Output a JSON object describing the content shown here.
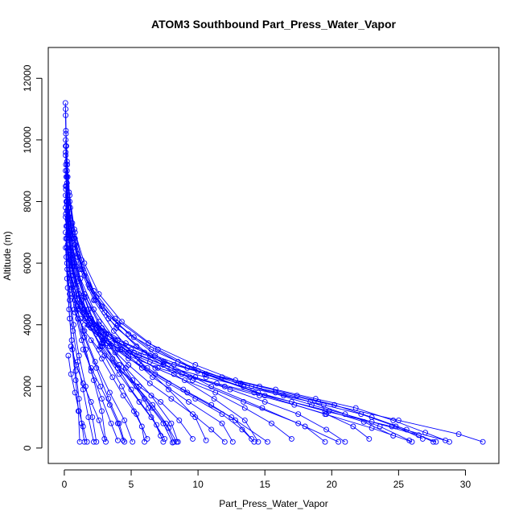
{
  "chart_data": {
    "type": "line",
    "title": "ATOM3 Southbound Part_Press_Water_Vapor",
    "xlabel": "Part_Press_Water_Vapor",
    "ylabel": "Altitude (m)",
    "xlim": [
      -1.2,
      32.5
    ],
    "ylim": [
      -500,
      13000
    ],
    "x_ticks": [
      0,
      5,
      10,
      15,
      20,
      25,
      30
    ],
    "y_ticks": [
      0,
      2000,
      4000,
      6000,
      8000,
      10000,
      12000
    ],
    "x_tick_labels": [
      "0",
      "5",
      "10",
      "15",
      "20",
      "25",
      "30"
    ],
    "y_tick_labels": [
      "0",
      "2000",
      "4000",
      "6000",
      "8000",
      "10000",
      "12000"
    ],
    "color": "#0000ff",
    "marker": "open-circle",
    "grid": false,
    "series": [
      {
        "x": [
          0.1,
          0.12,
          0.2,
          0.35,
          0.6,
          1.0,
          1.8,
          3.0,
          5.2,
          8.5,
          13.0,
          19.0,
          25.0,
          29.5,
          31.3
        ],
        "y": [
          11000,
          10200,
          9300,
          8300,
          7300,
          6300,
          5300,
          4400,
          3600,
          2800,
          2100,
          1500,
          900,
          450,
          200
        ]
      },
      {
        "x": [
          0.1,
          0.15,
          0.25,
          0.45,
          0.8,
          1.4,
          2.4,
          4.0,
          6.5,
          10.0,
          14.5,
          19.5,
          24.5,
          28.5
        ],
        "y": [
          10800,
          9800,
          8800,
          7800,
          6800,
          5800,
          4900,
          4000,
          3200,
          2500,
          1800,
          1200,
          700,
          250
        ]
      },
      {
        "x": [
          0.08,
          0.12,
          0.22,
          0.4,
          0.75,
          1.3,
          2.2,
          3.8,
          6.3,
          9.8,
          14.0,
          18.5,
          23.0,
          26.5,
          27.8
        ],
        "y": [
          11200,
          10300,
          9200,
          8200,
          7100,
          6100,
          5100,
          4200,
          3400,
          2700,
          2000,
          1400,
          850,
          420,
          200
        ]
      },
      {
        "x": [
          0.1,
          0.2,
          0.4,
          0.8,
          1.5,
          2.6,
          4.3,
          7.0,
          10.5,
          15.0,
          19.5,
          23.0,
          26.0
        ],
        "y": [
          10000,
          9000,
          8000,
          7000,
          6000,
          5000,
          4100,
          3200,
          2400,
          1700,
          1100,
          650,
          200
        ]
      },
      {
        "x": [
          0.1,
          0.18,
          0.35,
          0.7,
          1.3,
          2.3,
          3.9,
          6.4,
          9.6,
          13.4,
          17.5,
          20.5
        ],
        "y": [
          9800,
          8800,
          7800,
          6800,
          5800,
          4800,
          3900,
          3000,
          2200,
          1500,
          800,
          200
        ]
      },
      {
        "x": [
          0.1,
          0.2,
          0.4,
          0.8,
          1.5,
          2.8,
          4.8,
          7.5,
          11.0,
          14.8,
          18.0,
          19.5
        ],
        "y": [
          9600,
          8600,
          7600,
          6600,
          5600,
          4600,
          3700,
          2800,
          2000,
          1300,
          700,
          200
        ]
      },
      {
        "x": [
          0.1,
          0.18,
          0.35,
          0.65,
          1.2,
          2.2,
          3.8,
          6.2,
          9.2,
          12.5,
          15.2
        ],
        "y": [
          9500,
          8500,
          7500,
          6500,
          5500,
          4500,
          3500,
          2600,
          1800,
          1000,
          200
        ]
      },
      {
        "x": [
          0.12,
          0.25,
          0.5,
          1.0,
          1.9,
          3.3,
          5.4,
          8.2,
          11.2,
          13.5,
          14.5
        ],
        "y": [
          9200,
          8200,
          7200,
          6200,
          5200,
          4200,
          3300,
          2400,
          1600,
          900,
          200
        ]
      },
      {
        "x": [
          0.1,
          0.2,
          0.4,
          0.8,
          1.5,
          2.6,
          4.3,
          6.6,
          9.3,
          11.8,
          12.6
        ],
        "y": [
          9000,
          8000,
          7000,
          6000,
          5000,
          4100,
          3200,
          2300,
          1500,
          800,
          200
        ]
      },
      {
        "x": [
          0.15,
          0.3,
          0.6,
          1.2,
          2.2,
          3.7,
          5.6,
          7.8,
          9.8,
          10.6
        ],
        "y": [
          8800,
          7800,
          6800,
          5800,
          4800,
          3800,
          2800,
          1900,
          1000,
          250
        ]
      },
      {
        "x": [
          0.1,
          0.25,
          0.5,
          1.0,
          1.8,
          3.0,
          4.6,
          6.5,
          8.0,
          8.5
        ],
        "y": [
          8500,
          7500,
          6500,
          5500,
          4500,
          3500,
          2600,
          1700,
          800,
          200
        ]
      },
      {
        "x": [
          0.12,
          0.25,
          0.5,
          0.95,
          1.7,
          2.8,
          4.3,
          6.0,
          7.4,
          8.1
        ],
        "y": [
          8400,
          7400,
          6400,
          5400,
          4400,
          3400,
          2500,
          1600,
          800,
          180
        ]
      },
      {
        "x": [
          0.1,
          0.22,
          0.45,
          0.9,
          1.6,
          2.7,
          4.1,
          5.6,
          6.9,
          7.4
        ],
        "y": [
          8200,
          7200,
          6200,
          5200,
          4200,
          3300,
          2400,
          1500,
          750,
          200
        ]
      },
      {
        "x": [
          0.15,
          0.3,
          0.6,
          1.1,
          1.9,
          3.0,
          4.3,
          5.4,
          6.2
        ],
        "y": [
          8000,
          7000,
          6000,
          5000,
          4000,
          3000,
          2000,
          1100,
          300
        ]
      },
      {
        "x": [
          0.1,
          0.2,
          0.4,
          0.8,
          1.4,
          2.3,
          3.4,
          4.5,
          5.1
        ],
        "y": [
          7800,
          6800,
          5800,
          4800,
          3800,
          2800,
          1800,
          900,
          200
        ]
      },
      {
        "x": [
          0.12,
          0.25,
          0.5,
          0.9,
          1.5,
          2.4,
          3.3,
          4.1,
          4.5
        ],
        "y": [
          7600,
          6600,
          5600,
          4600,
          3600,
          2600,
          1600,
          800,
          200
        ]
      },
      {
        "x": [
          0.1,
          0.2,
          0.4,
          0.75,
          1.3,
          2.0,
          2.8,
          3.5,
          4.0
        ],
        "y": [
          7500,
          6500,
          5500,
          4500,
          3500,
          2500,
          1600,
          800,
          250
        ]
      },
      {
        "x": [
          0.15,
          0.3,
          0.55,
          1.0,
          1.6,
          2.2,
          2.8,
          3.1
        ],
        "y": [
          7200,
          6200,
          5200,
          4200,
          3200,
          2200,
          1200,
          200
        ]
      },
      {
        "x": [
          0.1,
          0.2,
          0.4,
          0.7,
          1.1,
          1.6,
          2.1,
          2.4
        ],
        "y": [
          7000,
          6000,
          5000,
          4000,
          3000,
          2000,
          1000,
          200
        ]
      },
      {
        "x": [
          0.12,
          0.22,
          0.4,
          0.65,
          1.0,
          1.4,
          1.8,
          2.2
        ],
        "y": [
          6800,
          5800,
          4800,
          3800,
          2800,
          1900,
          1000,
          200
        ]
      },
      {
        "x": [
          0.1,
          0.2,
          0.35,
          0.55,
          0.85,
          1.1,
          1.3,
          1.5
        ],
        "y": [
          6500,
          5500,
          4500,
          3500,
          2500,
          1600,
          800,
          200
        ]
      },
      {
        "x": [
          0.15,
          0.25,
          0.4,
          0.6,
          0.85,
          1.05,
          1.15
        ],
        "y": [
          6200,
          5200,
          4200,
          3200,
          2200,
          1200,
          200
        ]
      },
      {
        "x": [
          0.2,
          0.4,
          0.8,
          1.5,
          2.4,
          3.6,
          5.0,
          6.5,
          7.5
        ],
        "y": [
          7700,
          6800,
          5900,
          4900,
          3900,
          2900,
          1900,
          1000,
          300
        ]
      },
      {
        "x": [
          0.2,
          0.45,
          0.9,
          1.6,
          2.6,
          3.8,
          5.1,
          6.3,
          7.2
        ],
        "y": [
          7900,
          6900,
          5900,
          4900,
          4000,
          3100,
          2200,
          1300,
          400
        ]
      },
      {
        "x": [
          0.3,
          0.6,
          1.1,
          1.9,
          2.9,
          4.1,
          5.4,
          6.6,
          7.8,
          8.4
        ],
        "y": [
          6900,
          5900,
          5000,
          4200,
          3400,
          2700,
          2000,
          1300,
          650,
          200
        ]
      },
      {
        "x": [
          0.3,
          0.7,
          1.3,
          2.2,
          3.4,
          4.8,
          6.4,
          8.0,
          9.6,
          11.0,
          12.0
        ],
        "y": [
          6400,
          5600,
          4800,
          4000,
          3300,
          2700,
          2100,
          1600,
          1100,
          600,
          200
        ]
      },
      {
        "x": [
          0.4,
          0.8,
          1.5,
          2.6,
          4.0,
          5.8,
          7.8,
          9.8,
          11.8,
          13.3,
          14.2
        ],
        "y": [
          6100,
          5300,
          4500,
          3800,
          3200,
          2600,
          2100,
          1600,
          1100,
          600,
          200
        ]
      },
      {
        "x": [
          0.4,
          0.9,
          1.8,
          3.1,
          4.8,
          6.8,
          9.0,
          11.3,
          13.5,
          15.5,
          17.0
        ],
        "y": [
          5800,
          5000,
          4300,
          3700,
          3100,
          2600,
          2200,
          1800,
          1300,
          800,
          300
        ]
      },
      {
        "x": [
          0.5,
          1.0,
          2.0,
          3.4,
          5.2,
          7.4,
          9.8,
          12.4,
          15.0,
          17.5,
          19.6,
          21.0
        ],
        "y": [
          5600,
          4800,
          4200,
          3600,
          3100,
          2700,
          2300,
          1900,
          1500,
          1100,
          600,
          200
        ]
      },
      {
        "x": [
          0.5,
          1.2,
          2.4,
          4.0,
          6.0,
          8.2,
          10.6,
          13.2,
          15.8,
          18.4,
          21.0,
          23.6,
          25.8
        ],
        "y": [
          5300,
          4600,
          4000,
          3500,
          3100,
          2700,
          2400,
          2100,
          1800,
          1500,
          1100,
          700,
          250
        ]
      },
      {
        "x": [
          0.6,
          1.4,
          2.8,
          4.6,
          6.8,
          9.2,
          11.8,
          14.6,
          17.4,
          20.2,
          23.0,
          25.6,
          27.6
        ],
        "y": [
          5000,
          4400,
          3900,
          3400,
          3000,
          2600,
          2300,
          2000,
          1700,
          1400,
          1000,
          600,
          200
        ]
      },
      {
        "x": [
          0.8,
          1.6,
          3.0,
          5.0,
          7.4,
          10.0,
          12.8,
          15.8,
          18.8,
          21.8,
          24.6,
          27.0,
          28.8
        ],
        "y": [
          4800,
          4200,
          3700,
          3200,
          2800,
          2500,
          2200,
          1900,
          1600,
          1300,
          900,
          500,
          200
        ]
      },
      {
        "x": [
          1.0,
          2.0,
          3.6,
          5.6,
          8.0,
          10.6,
          13.4,
          16.4,
          19.4,
          22.2,
          24.8,
          26.8
        ],
        "y": [
          4500,
          3900,
          3400,
          3000,
          2600,
          2300,
          2000,
          1700,
          1400,
          1100,
          700,
          300
        ]
      },
      {
        "x": [
          1.2,
          2.4,
          4.2,
          6.4,
          8.8,
          11.4,
          14.2,
          17.0,
          19.8,
          22.4,
          24.6
        ],
        "y": [
          4200,
          3700,
          3200,
          2800,
          2400,
          2100,
          1800,
          1500,
          1200,
          850,
          400
        ]
      },
      {
        "x": [
          1.5,
          2.9,
          4.8,
          7.0,
          9.4,
          12.0,
          14.6,
          17.2,
          19.6,
          21.6,
          22.8
        ],
        "y": [
          4000,
          3500,
          3000,
          2600,
          2300,
          2000,
          1700,
          1400,
          1100,
          700,
          300
        ]
      },
      {
        "x": [
          1.0,
          1.8,
          3.2,
          4.8,
          6.8,
          8.9,
          11.0,
          12.8,
          14.0
        ],
        "y": [
          4600,
          4000,
          3400,
          2900,
          2400,
          1900,
          1400,
          900,
          300
        ]
      },
      {
        "x": [
          0.8,
          1.5,
          2.6,
          4.0,
          5.6,
          7.2,
          8.6,
          9.6
        ],
        "y": [
          4400,
          3800,
          3200,
          2600,
          2000,
          1500,
          900,
          300
        ]
      },
      {
        "x": [
          1.8,
          2.8,
          4.0,
          5.4,
          6.6,
          7.6,
          8.2
        ],
        "y": [
          4000,
          3300,
          2600,
          2000,
          1400,
          800,
          200
        ]
      },
      {
        "x": [
          2.0,
          2.8,
          3.6,
          4.4,
          5.2,
          5.8,
          6.0
        ],
        "y": [
          3500,
          2900,
          2300,
          1700,
          1200,
          700,
          200
        ]
      },
      {
        "x": [
          1.4,
          2.0,
          2.7,
          3.4,
          4.0,
          4.4
        ],
        "y": [
          3200,
          2600,
          2000,
          1400,
          800,
          250
        ]
      },
      {
        "x": [
          0.5,
          0.9,
          1.4,
          2.0,
          2.6,
          3.0
        ],
        "y": [
          3300,
          2700,
          2100,
          1500,
          900,
          300
        ]
      },
      {
        "x": [
          0.3,
          0.5,
          0.8,
          1.1,
          1.4,
          1.7
        ],
        "y": [
          3000,
          2400,
          1800,
          1200,
          700,
          200
        ]
      }
    ]
  }
}
